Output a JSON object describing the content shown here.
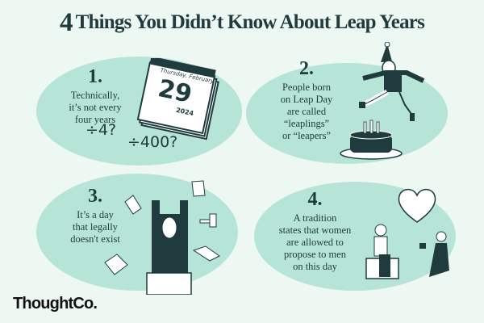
{
  "title": {
    "number": "4",
    "text": "Things You Didn’t Know About Leap Years"
  },
  "facts": [
    {
      "number": "1.",
      "lines": [
        "Technically,",
        "it’s not every",
        "four years"
      ]
    },
    {
      "number": "2.",
      "lines": [
        "People born",
        "on Leap Day",
        "are called",
        "“leaplings”",
        "or “leapers”"
      ]
    },
    {
      "number": "3.",
      "lines": [
        "It’s a day",
        "that legally",
        "doesn't exist"
      ]
    },
    {
      "number": "4.",
      "lines": [
        "A tradition",
        "states that women",
        "are allowed to",
        "propose to men",
        "on this day"
      ]
    }
  ],
  "calendar": {
    "weekday_month": "Thursday, February",
    "day": "29",
    "year": "2024"
  },
  "math": {
    "div4": "÷4?",
    "div400": "÷400?"
  },
  "brand": {
    "logo": "ThoughtCo."
  },
  "colors": {
    "background": "#eef8f3",
    "blob": "#b6e4d6",
    "ink": "#1f3b3d"
  }
}
